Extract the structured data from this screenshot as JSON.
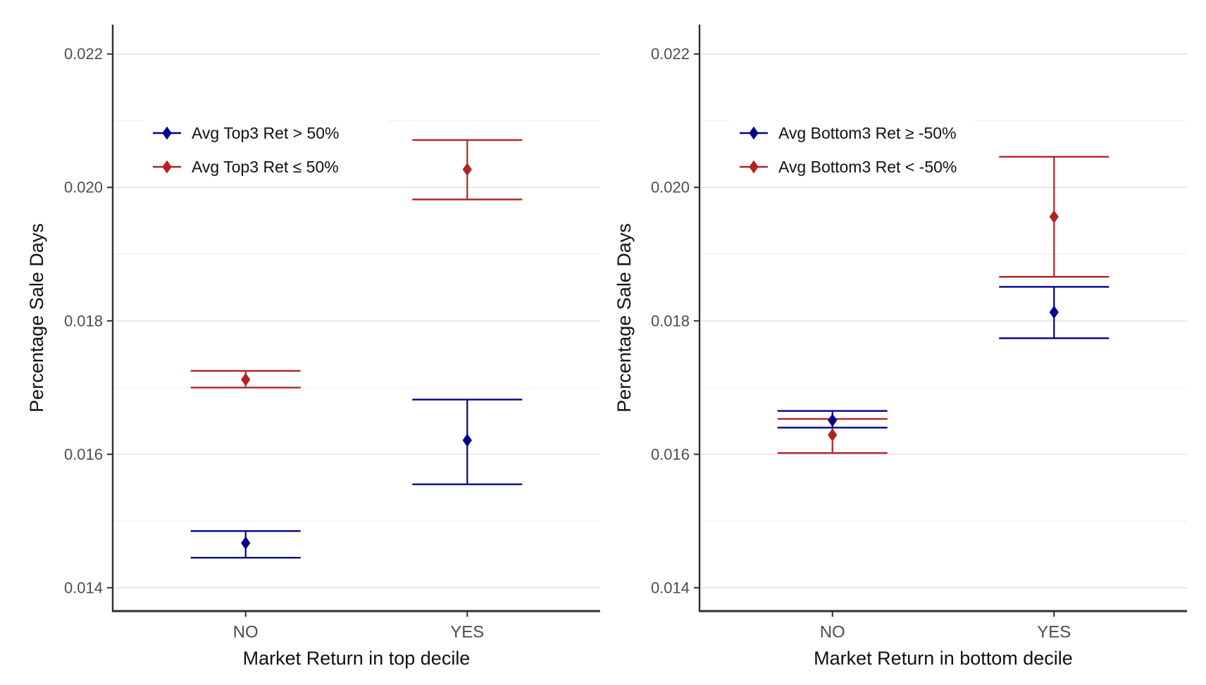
{
  "figure": {
    "background": "#ffffff",
    "colors": {
      "navy": "#00008B",
      "firebrick": "#B22222",
      "grid_major": "#e3e3e3",
      "grid_minor": "#f1f1f1",
      "axis_line": "#2f2f2f",
      "tick_label": "#4d4d4d",
      "axis_title": "#111111",
      "legend_text": "#111111"
    }
  },
  "chart_data": [
    {
      "type": "errorbar",
      "panel": "left",
      "xlabel": "Market Return in top decile",
      "ylabel": "Percentage Sale Days",
      "categories": [
        "NO",
        "YES"
      ],
      "ylim": [
        0.01365,
        0.02244
      ],
      "yticks": [
        0.014,
        0.016,
        0.018,
        0.02,
        0.022
      ],
      "ytick_labels": [
        "0.014",
        "0.016",
        "0.018",
        "0.020",
        "0.022"
      ],
      "grid": "horizontal-only",
      "legend_position": "inside-top-left",
      "series": [
        {
          "name": "Avg Top3 Ret > 50%",
          "color": "#00008B",
          "means": [
            0.01467,
            0.01621
          ],
          "lower": [
            0.01445,
            0.01555
          ],
          "upper": [
            0.01485,
            0.01682
          ]
        },
        {
          "name": "Avg Top3 Ret ≤ 50%",
          "color": "#B22222",
          "means": [
            0.01712,
            0.02027
          ],
          "lower": [
            0.017,
            0.01982
          ],
          "upper": [
            0.01725,
            0.02071
          ]
        }
      ]
    },
    {
      "type": "errorbar",
      "panel": "right",
      "xlabel": "Market Return in bottom decile",
      "ylabel": "Percentage Sale Days",
      "categories": [
        "NO",
        "YES"
      ],
      "ylim": [
        0.01365,
        0.02244
      ],
      "yticks": [
        0.014,
        0.016,
        0.018,
        0.02,
        0.022
      ],
      "ytick_labels": [
        "0.014",
        "0.016",
        "0.018",
        "0.020",
        "0.022"
      ],
      "grid": "horizontal-only",
      "legend_position": "inside-top-left",
      "series": [
        {
          "name": "Avg Bottom3 Ret ≥ -50%",
          "color": "#00008B",
          "means": [
            0.01651,
            0.01813
          ],
          "lower": [
            0.0164,
            0.01774
          ],
          "upper": [
            0.01665,
            0.01851
          ]
        },
        {
          "name": "Avg Bottom3 Ret < -50%",
          "color": "#B22222",
          "means": [
            0.01629,
            0.01956
          ],
          "lower": [
            0.01602,
            0.01866
          ],
          "upper": [
            0.01653,
            0.02046
          ]
        }
      ]
    }
  ]
}
